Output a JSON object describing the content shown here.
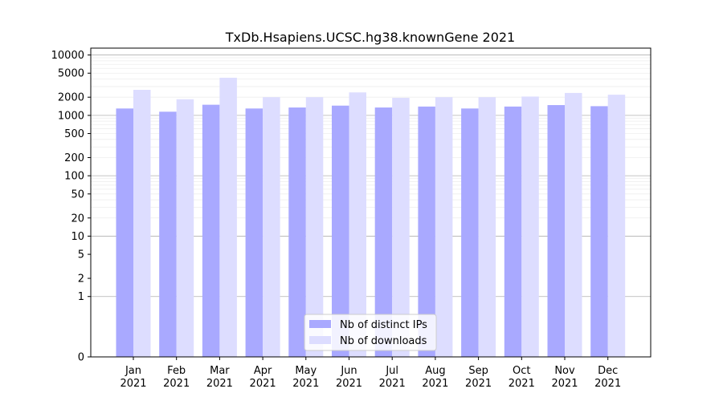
{
  "chart_data": {
    "type": "bar",
    "title": "TxDb.Hsapiens.UCSC.hg38.knownGene 2021",
    "xlabel": "",
    "ylabel": "",
    "yscale": "symlog",
    "ylim": [
      0,
      13000
    ],
    "yticks": [
      "0",
      "1",
      "2",
      "5",
      "10",
      "20",
      "50",
      "100",
      "200",
      "500",
      "1000",
      "2000",
      "5000",
      "10000"
    ],
    "categories": [
      [
        "Jan",
        "2021"
      ],
      [
        "Feb",
        "2021"
      ],
      [
        "Mar",
        "2021"
      ],
      [
        "Apr",
        "2021"
      ],
      [
        "May",
        "2021"
      ],
      [
        "Jun",
        "2021"
      ],
      [
        "Jul",
        "2021"
      ],
      [
        "Aug",
        "2021"
      ],
      [
        "Sep",
        "2021"
      ],
      [
        "Oct",
        "2021"
      ],
      [
        "Nov",
        "2021"
      ],
      [
        "Dec",
        "2021"
      ]
    ],
    "series": [
      {
        "name": "Nb of distinct IPs",
        "color": "#a9a9ff",
        "values": [
          1300,
          1150,
          1500,
          1300,
          1350,
          1450,
          1350,
          1400,
          1300,
          1400,
          1480,
          1420
        ]
      },
      {
        "name": "Nb of downloads",
        "color": "#ddddff",
        "values": [
          2650,
          1850,
          4200,
          2000,
          2000,
          2400,
          1950,
          2000,
          2000,
          2050,
          2350,
          2200
        ]
      }
    ],
    "legend_position": "bottom-center",
    "grid": true
  }
}
